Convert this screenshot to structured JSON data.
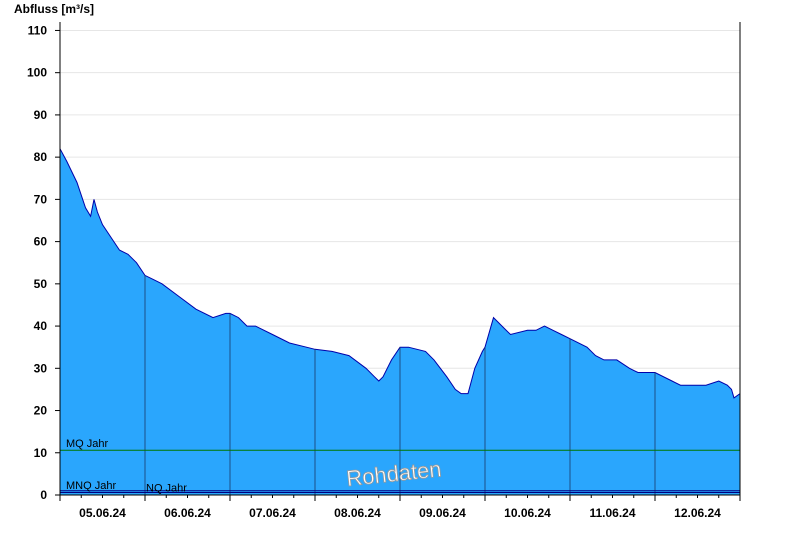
{
  "chart_data": {
    "type": "area",
    "ylabel": "Abfluss [m³/s]",
    "ylim": [
      0,
      112
    ],
    "yticks": [
      0,
      10,
      20,
      30,
      40,
      50,
      60,
      70,
      80,
      90,
      100,
      110
    ],
    "grid": true,
    "watermark": "Rohdaten",
    "x_day_labels": [
      "05.06.24",
      "06.06.24",
      "07.06.24",
      "08.06.24",
      "09.06.24",
      "10.06.24",
      "11.06.24",
      "12.06.24"
    ],
    "xlim_days": [
      0,
      8
    ],
    "colors": {
      "area": "#2aa6fd",
      "line": "#0000aa",
      "mq_line": "#007700",
      "ref_line": "#000080"
    },
    "reference_lines": [
      {
        "name": "MQ Jahr",
        "value": 10.6
      },
      {
        "name": "MNQ Jahr",
        "value": 1.0
      },
      {
        "name": "NQ Jahr",
        "value": 0.6
      }
    ],
    "series": [
      {
        "x_day": [
          0,
          0.08,
          0.2,
          0.3,
          0.36,
          0.4,
          0.44,
          0.5,
          0.6,
          0.7,
          0.8,
          0.9,
          1.0,
          1.1,
          1.2,
          1.4,
          1.6,
          1.8,
          1.95,
          2.0,
          2.1,
          2.2,
          2.3,
          2.5,
          2.7,
          2.9,
          3.0,
          3.2,
          3.4,
          3.6,
          3.7,
          3.75,
          3.8,
          3.9,
          4.0,
          4.1,
          4.3,
          4.4,
          4.55,
          4.65,
          4.72,
          4.8,
          4.88,
          4.97,
          5.0,
          5.1,
          5.2,
          5.3,
          5.5,
          5.6,
          5.7,
          5.8,
          5.9,
          6.0,
          6.2,
          6.3,
          6.4,
          6.55,
          6.7,
          6.8,
          6.95,
          7.0,
          7.2,
          7.3,
          7.5,
          7.6,
          7.75,
          7.85,
          7.9,
          7.93,
          8.0
        ],
        "y": [
          82,
          79,
          74,
          68,
          66,
          70,
          67,
          64,
          61,
          58,
          57,
          55,
          52,
          51,
          50,
          47,
          44,
          42,
          43,
          43,
          42,
          40,
          40,
          38,
          36,
          35,
          34.5,
          34,
          33,
          30,
          28,
          27,
          28,
          32,
          35,
          35,
          34,
          32,
          28,
          25,
          24,
          24,
          30,
          34,
          35,
          42,
          40,
          38,
          39,
          39,
          40,
          39,
          38,
          37,
          35,
          33,
          32,
          32,
          30,
          29,
          29,
          29,
          27,
          26,
          26,
          26,
          27,
          26,
          25,
          23,
          24
        ]
      }
    ]
  }
}
